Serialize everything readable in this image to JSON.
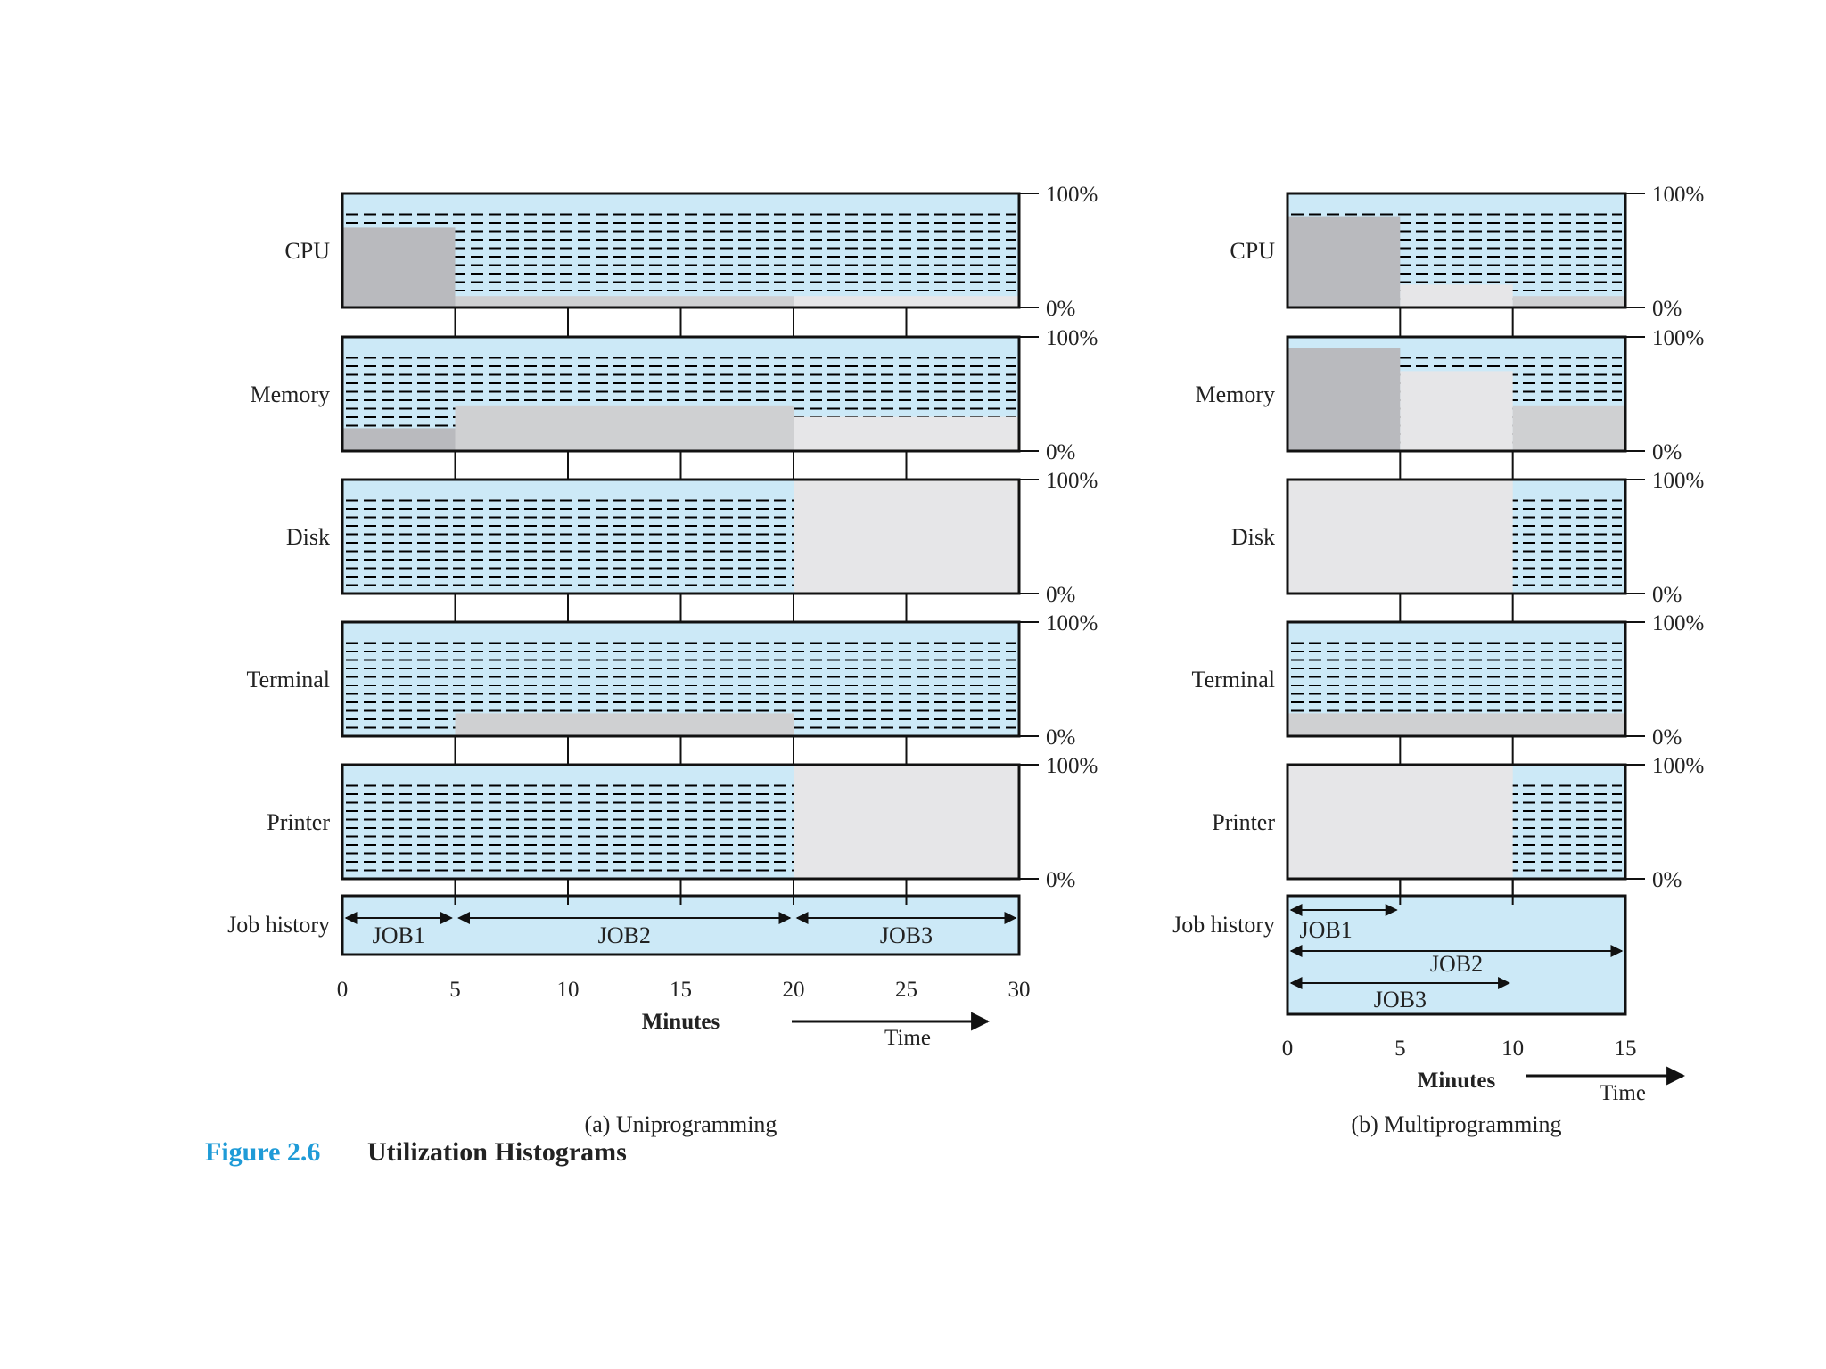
{
  "figure": {
    "number": "Figure 2.6",
    "title": "Utilization Histograms",
    "number_color": "#1f9bd7"
  },
  "colors": {
    "idle_bg": "#cce9f7",
    "dash": "#000000",
    "fill_dark": "#b9babe",
    "fill_mid": "#cfd0d2",
    "fill_light": "#e6e6e8",
    "frame": "#111111"
  },
  "chart_data": [
    {
      "type": "area",
      "caption": "(a) Uniprogramming",
      "xlabel": "Minutes",
      "time_label": "Time",
      "x_ticks": [
        "0",
        "5",
        "10",
        "15",
        "20",
        "25",
        "30"
      ],
      "xlim": [
        0,
        30
      ],
      "ylim": [
        0,
        100
      ],
      "y_tick_labels": [
        "100%",
        "0%"
      ],
      "resources": [
        {
          "name": "CPU",
          "segments": [
            {
              "x0": 0,
              "x1": 5,
              "value": 70,
              "shade": "dark"
            },
            {
              "x0": 5,
              "x1": 20,
              "value": 10,
              "shade": "mid"
            },
            {
              "x0": 20,
              "x1": 30,
              "value": 10,
              "shade": "light"
            }
          ]
        },
        {
          "name": "Memory",
          "segments": [
            {
              "x0": 0,
              "x1": 5,
              "value": 20,
              "shade": "dark"
            },
            {
              "x0": 5,
              "x1": 20,
              "value": 40,
              "shade": "mid"
            },
            {
              "x0": 20,
              "x1": 30,
              "value": 30,
              "shade": "light"
            }
          ]
        },
        {
          "name": "Disk",
          "segments": [
            {
              "x0": 20,
              "x1": 30,
              "value": 100,
              "shade": "light"
            }
          ]
        },
        {
          "name": "Terminal",
          "segments": [
            {
              "x0": 5,
              "x1": 20,
              "value": 20,
              "shade": "mid"
            }
          ]
        },
        {
          "name": "Printer",
          "segments": [
            {
              "x0": 20,
              "x1": 30,
              "value": 100,
              "shade": "light"
            }
          ]
        }
      ],
      "job_history": {
        "label": "Job history",
        "jobs": [
          {
            "name": "JOB1",
            "start": 0,
            "end": 5
          },
          {
            "name": "JOB2",
            "start": 5,
            "end": 20
          },
          {
            "name": "JOB3",
            "start": 20,
            "end": 30
          }
        ]
      }
    },
    {
      "type": "area",
      "caption": "(b) Multiprogramming",
      "xlabel": "Minutes",
      "time_label": "Time",
      "x_ticks": [
        "0",
        "5",
        "10",
        "15"
      ],
      "xlim": [
        0,
        15
      ],
      "ylim": [
        0,
        100
      ],
      "y_tick_labels": [
        "100%",
        "0%"
      ],
      "resources": [
        {
          "name": "CPU",
          "segments": [
            {
              "x0": 0,
              "x1": 5,
              "value": 80,
              "shade": "dark"
            },
            {
              "x0": 5,
              "x1": 10,
              "value": 20,
              "shade": "light"
            },
            {
              "x0": 10,
              "x1": 15,
              "value": 10,
              "shade": "mid"
            }
          ]
        },
        {
          "name": "Memory",
          "segments": [
            {
              "x0": 0,
              "x1": 5,
              "value": 90,
              "shade": "dark"
            },
            {
              "x0": 5,
              "x1": 10,
              "value": 70,
              "shade": "light"
            },
            {
              "x0": 10,
              "x1": 15,
              "value": 40,
              "shade": "mid"
            }
          ]
        },
        {
          "name": "Disk",
          "segments": [
            {
              "x0": 0,
              "x1": 10,
              "value": 100,
              "shade": "light"
            }
          ]
        },
        {
          "name": "Terminal",
          "segments": [
            {
              "x0": 0,
              "x1": 15,
              "value": 20,
              "shade": "mid"
            }
          ]
        },
        {
          "name": "Printer",
          "segments": [
            {
              "x0": 0,
              "x1": 10,
              "value": 100,
              "shade": "light"
            }
          ]
        }
      ],
      "job_history": {
        "label": "Job history",
        "jobs": [
          {
            "name": "JOB1",
            "start": 0,
            "end": 5
          },
          {
            "name": "JOB2",
            "start": 0,
            "end": 15
          },
          {
            "name": "JOB3",
            "start": 0,
            "end": 10
          }
        ]
      }
    }
  ]
}
